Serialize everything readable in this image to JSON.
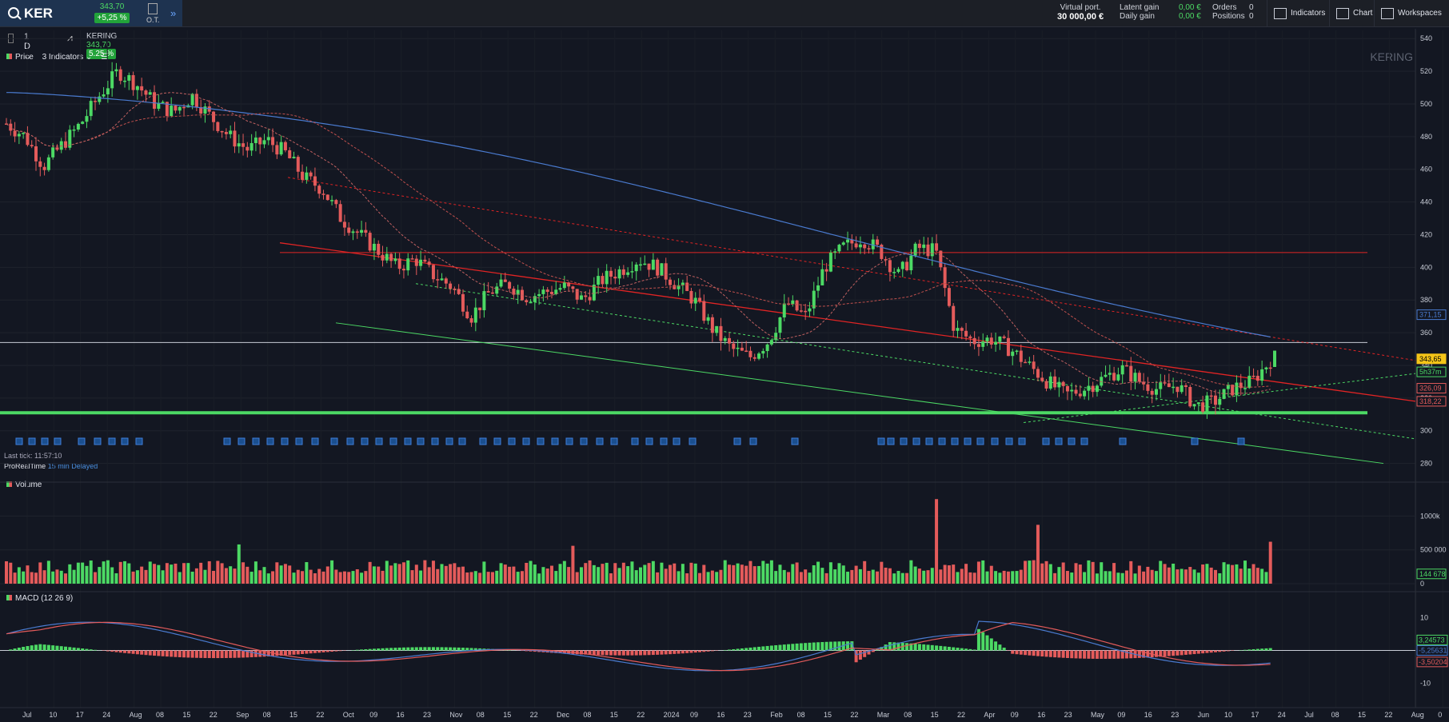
{
  "header": {
    "symbol": "KER",
    "price": "343,70",
    "change": "+5,25 %",
    "ot_label": "O.T.",
    "virtual_port_label": "Virtual port.",
    "virtual_port_value": "30 000,00 €",
    "latent_gain_label": "Latent gain",
    "latent_gain_value": "0,00 €",
    "daily_gain_label": "Daily gain",
    "daily_gain_value": "0,00 €",
    "orders_label": "Orders",
    "orders_value": "0",
    "positions_label": "Positions",
    "positions_value": "0",
    "btn_indicators": "Indicators",
    "btn_chart": "Chart",
    "btn_workspaces": "Workspaces"
  },
  "toolbar": {
    "timeframe": "1 D",
    "instrument": "KERING",
    "instrument_price": "343,70",
    "instrument_change": "5.25 %",
    "price_label": "Price",
    "indicators_label": "3 Indicators",
    "watermark": "KERING",
    "last_tick": "Last tick: 11:57:10",
    "provider": "ProRealTime",
    "delay": "15 min Delayed"
  },
  "colors": {
    "up": "#4cd964",
    "down": "#e45b5b",
    "ma_blue": "#4a7bd0",
    "trend_red": "#e02424",
    "support_green": "#4cd964"
  },
  "chart_data": [
    {
      "type": "candlestick",
      "title": "Price",
      "ylim": [
        270,
        545
      ],
      "yticks": [
        280,
        300,
        320,
        340,
        360,
        380,
        400,
        420,
        440,
        460,
        480,
        500,
        520,
        540
      ],
      "x_labels": [
        "Jul",
        "10",
        "17",
        "24",
        "Aug",
        "08",
        "15",
        "22",
        "Sep",
        "08",
        "15",
        "22",
        "Oct",
        "09",
        "16",
        "23",
        "Nov",
        "08",
        "15",
        "22",
        "Dec",
        "08",
        "15",
        "22",
        "2024",
        "09",
        "16",
        "23",
        "Feb",
        "08",
        "15",
        "22",
        "Mar",
        "08",
        "15",
        "22",
        "Apr",
        "09",
        "16",
        "23",
        "May",
        "09",
        "16",
        "23",
        "Jun",
        "10",
        "17",
        "24",
        "Jul",
        "08",
        "15",
        "22",
        "Aug",
        "0"
      ],
      "close_path": [
        488,
        480,
        462,
        475,
        488,
        505,
        520,
        512,
        500,
        495,
        505,
        492,
        480,
        472,
        478,
        470,
        455,
        448,
        430,
        420,
        410,
        400,
        405,
        395,
        388,
        370,
        385,
        390,
        382,
        385,
        388,
        380,
        392,
        398,
        405,
        400,
        390,
        380,
        362,
        350,
        345,
        355,
        378,
        370,
        400,
        412,
        418,
        410,
        395,
        412,
        410,
        362,
        355,
        356,
        350,
        340,
        330,
        322,
        326,
        332,
        338,
        330,
        325,
        328,
        315,
        318,
        326,
        330,
        343
      ],
      "price_labels": [
        {
          "value": "371,15",
          "color": "#4a7bd0"
        },
        {
          "value": "343,65",
          "color": "#f5c518"
        },
        {
          "value": "5h37m",
          "color": "#4cd964"
        },
        {
          "value": "326,09",
          "color": "#e45b5b"
        },
        {
          "value": "318,22",
          "color": "#e45b5b"
        }
      ],
      "horizontal_levels": [
        {
          "value": 409,
          "color": "#e02424"
        },
        {
          "value": 354,
          "color": "#c8ccd6"
        },
        {
          "value": 311,
          "color": "#4cd964"
        }
      ]
    },
    {
      "type": "bar",
      "title": "Volume",
      "ylim": [
        0,
        1300000
      ],
      "yticks": [
        {
          "v": 0,
          "t": "0"
        },
        {
          "v": 500000,
          "t": "500 000"
        },
        {
          "v": 1000000,
          "t": "1000k"
        }
      ],
      "last_value": "144 678",
      "spikes": [
        {
          "i": 55,
          "v": 580000
        },
        {
          "i": 134,
          "v": 560000
        },
        {
          "i": 220,
          "v": 1250000
        },
        {
          "i": 244,
          "v": 870000
        },
        {
          "i": 299,
          "v": 620000
        },
        {
          "i": 305,
          "v": 640000
        }
      ]
    },
    {
      "type": "area",
      "title": "MACD (12 26 9)",
      "ylim": [
        -15,
        15
      ],
      "yticks": [
        {
          "v": 10,
          "t": "10"
        },
        {
          "v": -10,
          "t": "-10"
        }
      ],
      "values": [
        {
          "value": "3,24573",
          "color": "#4cd964"
        },
        {
          "value": "-5,25631",
          "color": "#4a7bd0"
        },
        {
          "value": "-3,50204",
          "color": "#e45b5b"
        }
      ]
    }
  ]
}
